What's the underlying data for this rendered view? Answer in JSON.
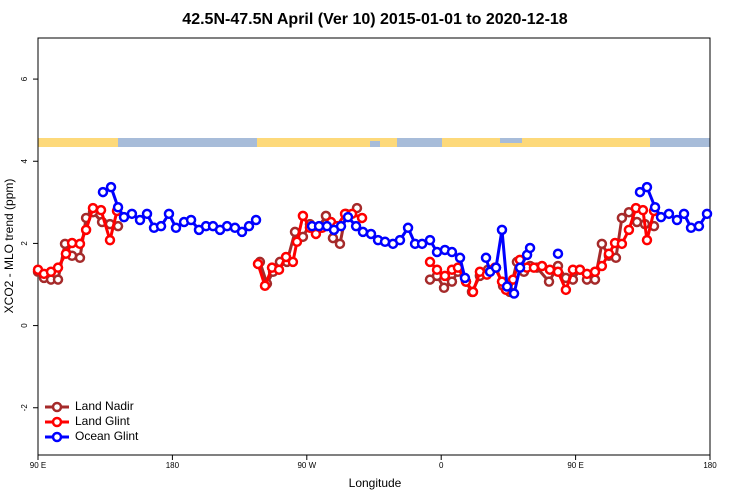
{
  "chart_data": {
    "type": "line",
    "title": "42.5N-47.5N April (Ver 10)   2015-01-01 to 2020-12-18",
    "xlabel": "Longitude",
    "ylabel": "XCO2 - MLO trend (ppm)",
    "xlim": [
      90,
      540
    ],
    "ylim": [
      -3.15,
      7
    ],
    "xticks": [
      {
        "value": 90,
        "label": "90 E"
      },
      180,
      {
        "value": 270,
        "label": "90 W"
      },
      {
        "value": 360,
        "label": "0"
      },
      {
        "value": 450,
        "label": "90 E"
      },
      {
        "value": 540,
        "label": "180"
      }
    ],
    "yticks": [
      -2,
      0,
      2,
      4,
      6
    ],
    "legend": "bottomleft",
    "series": [
      {
        "name": "Land Nadir",
        "color": "#a52a2a",
        "x": [
          90,
          94.0,
          98.7,
          103.4,
          108.1,
          112.8,
          118.1,
          122.2,
          126.8,
          132.9,
          138.2,
          143.6,
          null,
          238.6,
          243.3,
          247.4,
          252.0,
          256.7,
          262.1,
          267.4,
          272.1,
          276.8,
          282.8,
          287.5,
          292.2,
          296.2,
          303.6,
          null,
          352.5,
          357.2,
          361.9,
          367.2,
          371.2,
          376.6,
          380.6,
          385.9,
          391.3,
          396.7,
          401.4,
          406.0,
          410.7,
          415.4,
          419.5,
          424.1,
          432.2,
          438.2,
          443.5,
          448.2,
          452.9,
          457.6,
          463.0,
          467.6,
          472.3,
          477.0,
          481.0,
          485.7,
          491.1,
          496.4,
          502.5
        ],
        "values": [
          1.31,
          1.16,
          1.12,
          1.12,
          1.99,
          1.7,
          1.65,
          2.62,
          2.76,
          2.52,
          2.47,
          2.42,
          null,
          1.55,
          1.02,
          1.31,
          1.55,
          1.55,
          2.28,
          2.16,
          2.47,
          2.33,
          2.67,
          2.13,
          1.99,
          2.72,
          2.86,
          null,
          1.12,
          1.21,
          0.92,
          1.07,
          1.31,
          1.07,
          0.82,
          1.21,
          1.36,
          1.41,
          0.97,
          0.82,
          1.55,
          1.31,
          1.45,
          1.41,
          1.07,
          1.45,
          1.16,
          1.12,
          1.36,
          1.12,
          1.12,
          1.99,
          1.7,
          1.65,
          2.62,
          2.76,
          2.52,
          2.47,
          2.42
        ]
      },
      {
        "name": "Land Glint",
        "color": "#ff0000",
        "x": [
          90,
          94.0,
          98.7,
          103.4,
          108.7,
          112.8,
          118.1,
          122.2,
          126.8,
          132.2,
          138.2,
          142.9,
          null,
          237.3,
          242.0,
          246.7,
          251.4,
          256.1,
          260.7,
          263.4,
          267.4,
          272.1,
          276.1,
          280.2,
          286.2,
          290.2,
          295.6,
          300.3,
          307.0,
          null,
          352.5,
          357.2,
          362.5,
          367.2,
          371.2,
          376.6,
          381.3,
          385.9,
          390.6,
          396.0,
          400.7,
          403.4,
          408.1,
          412.7,
          417.4,
          422.1,
          427.5,
          432.8,
          438.2,
          443.5,
          448.2,
          452.9,
          457.6,
          463.0,
          467.6,
          472.3,
          476.4,
          481.0,
          485.7,
          490.4,
          495.1,
          497.8,
          502.5
        ],
        "values": [
          1.36,
          1.26,
          1.31,
          1.41,
          1.75,
          2.01,
          1.99,
          2.33,
          2.86,
          2.81,
          2.08,
          2.79,
          null,
          1.5,
          0.97,
          1.41,
          1.36,
          1.67,
          1.55,
          2.04,
          2.67,
          2.38,
          2.23,
          2.38,
          2.52,
          2.42,
          2.72,
          2.72,
          2.62,
          null,
          1.55,
          1.36,
          1.21,
          1.36,
          1.41,
          1.07,
          0.82,
          1.31,
          1.24,
          1.41,
          1.07,
          0.87,
          1.12,
          1.6,
          1.41,
          1.41,
          1.45,
          1.36,
          1.31,
          0.87,
          1.36,
          1.36,
          1.26,
          1.31,
          1.45,
          1.75,
          2.01,
          1.99,
          2.33,
          2.86,
          2.81,
          2.08,
          2.79
        ]
      },
      {
        "name": "Ocean Glint",
        "color": "#0000ff",
        "x": [
          133.5,
          138.9,
          143.6,
          147.6,
          152.9,
          158.3,
          163.0,
          167.7,
          172.4,
          177.7,
          182.4,
          187.8,
          192.5,
          197.8,
          202.5,
          207.2,
          211.9,
          216.6,
          221.9,
          226.6,
          231.3,
          236.0,
          null,
          273.5,
          278.2,
          283.5,
          288.2,
          292.9,
          297.6,
          303.0,
          307.6,
          313.0,
          317.7,
          322.4,
          327.7,
          332.4,
          337.8,
          342.5,
          347.2,
          352.5,
          357.2,
          362.5,
          367.2,
          372.6,
          375.9,
          null,
          390.0,
          392.7,
          396.7,
          400.7,
          404.1,
          408.8,
          412.8,
          417.5,
          419.5,
          null,
          438.2,
          null,
          493.1,
          497.8,
          503.2,
          507.2,
          512.5,
          517.9,
          522.6,
          527.3,
          532.6,
          538.0
        ],
        "values": [
          3.25,
          3.37,
          2.88,
          2.64,
          2.72,
          2.57,
          2.72,
          2.38,
          2.42,
          2.72,
          2.38,
          2.52,
          2.57,
          2.33,
          2.42,
          2.42,
          2.33,
          2.42,
          2.38,
          2.28,
          2.42,
          2.57,
          null,
          2.42,
          2.42,
          2.42,
          2.33,
          2.42,
          2.64,
          2.42,
          2.28,
          2.23,
          2.08,
          2.04,
          1.99,
          2.08,
          2.38,
          1.99,
          1.99,
          2.08,
          1.79,
          1.84,
          1.79,
          1.65,
          1.16,
          null,
          1.65,
          1.31,
          1.41,
          2.33,
          0.95,
          0.78,
          1.41,
          1.72,
          1.89,
          null,
          1.75,
          null,
          3.25,
          3.37,
          2.88,
          2.64,
          2.72,
          2.57,
          2.72,
          2.38,
          2.42,
          2.72
        ]
      }
    ]
  }
}
